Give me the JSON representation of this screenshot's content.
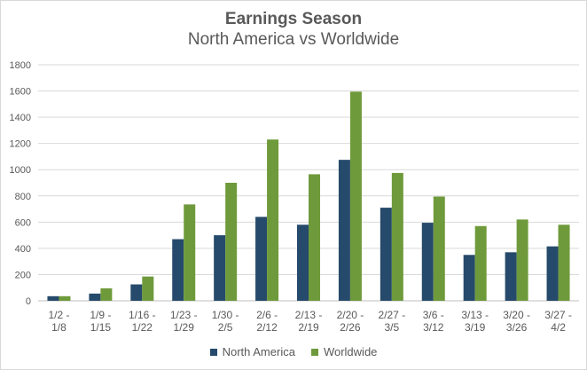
{
  "chart_data": {
    "type": "bar",
    "title": "Earnings Season",
    "subtitle": "North America vs Worldwide",
    "xlabel": "",
    "ylabel": "",
    "ylim": [
      0,
      1800
    ],
    "yticks": [
      0,
      200,
      400,
      600,
      800,
      1000,
      1200,
      1400,
      1600,
      1800
    ],
    "grid": true,
    "legend_position": "bottom",
    "categories": [
      [
        "1/2 -",
        "1/8"
      ],
      [
        "1/9 -",
        "1/15"
      ],
      [
        "1/16 -",
        "1/22"
      ],
      [
        "1/23 -",
        "1/29"
      ],
      [
        "1/30 -",
        "2/5"
      ],
      [
        "2/6 -",
        "2/12"
      ],
      [
        "2/13 -",
        "2/19"
      ],
      [
        "2/20 -",
        "2/26"
      ],
      [
        "2/27 -",
        "3/5"
      ],
      [
        "3/6 -",
        "3/12"
      ],
      [
        "3/13 -",
        "3/19"
      ],
      [
        "3/20 -",
        "3/26"
      ],
      [
        "3/27 -",
        "4/2"
      ]
    ],
    "series": [
      {
        "name": "North America",
        "color": "#264a6b",
        "values": [
          35,
          55,
          125,
          470,
          500,
          640,
          580,
          1075,
          710,
          595,
          350,
          370,
          415
        ]
      },
      {
        "name": "Worldwide",
        "color": "#6f9a3b",
        "values": [
          35,
          95,
          185,
          735,
          900,
          1230,
          965,
          1595,
          975,
          795,
          570,
          620,
          580
        ]
      }
    ]
  }
}
